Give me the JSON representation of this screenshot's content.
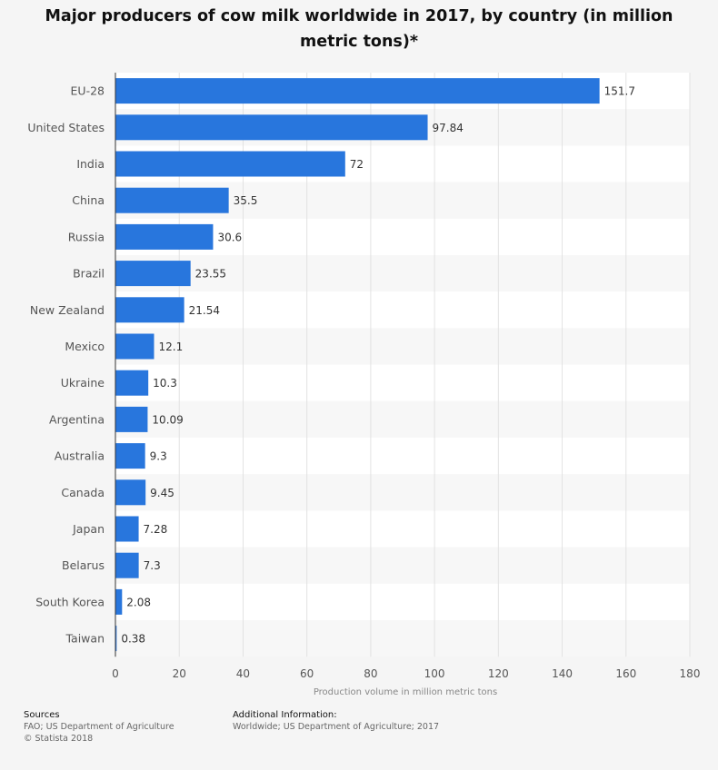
{
  "chart_data": {
    "type": "bar",
    "orientation": "horizontal",
    "title": "Major producers of cow milk worldwide in 2017, by country (in million metric tons)*",
    "xlabel": "Production volume in million metric tons",
    "ylabel": "",
    "categories": [
      "EU-28",
      "United States",
      "India",
      "China",
      "Russia",
      "Brazil",
      "New Zealand",
      "Mexico",
      "Ukraine",
      "Argentina",
      "Australia",
      "Canada",
      "Japan",
      "Belarus",
      "South Korea",
      "Taiwan"
    ],
    "values": [
      151.7,
      97.84,
      72,
      35.5,
      30.6,
      23.55,
      21.54,
      12.1,
      10.3,
      10.09,
      9.3,
      9.45,
      7.28,
      7.3,
      2.08,
      0.38
    ],
    "value_labels": [
      "151.7",
      "97.84",
      "72",
      "35.5",
      "30.6",
      "23.55",
      "21.54",
      "12.1",
      "10.3",
      "10.09",
      "9.3",
      "9.45",
      "7.28",
      "7.3",
      "2.08",
      "0.38"
    ],
    "xlim": [
      0,
      180
    ],
    "ticks": [
      0,
      20,
      40,
      60,
      80,
      100,
      120,
      140,
      160,
      180
    ],
    "grid": true,
    "bar_color": "#2876dd"
  },
  "footer": {
    "sources_heading": "Sources",
    "sources_lines": [
      "FAO; US Department of Agriculture",
      "© Statista 2018"
    ],
    "info_heading": "Additional Information:",
    "info_lines": [
      "Worldwide; US Department of Agriculture; 2017"
    ]
  }
}
